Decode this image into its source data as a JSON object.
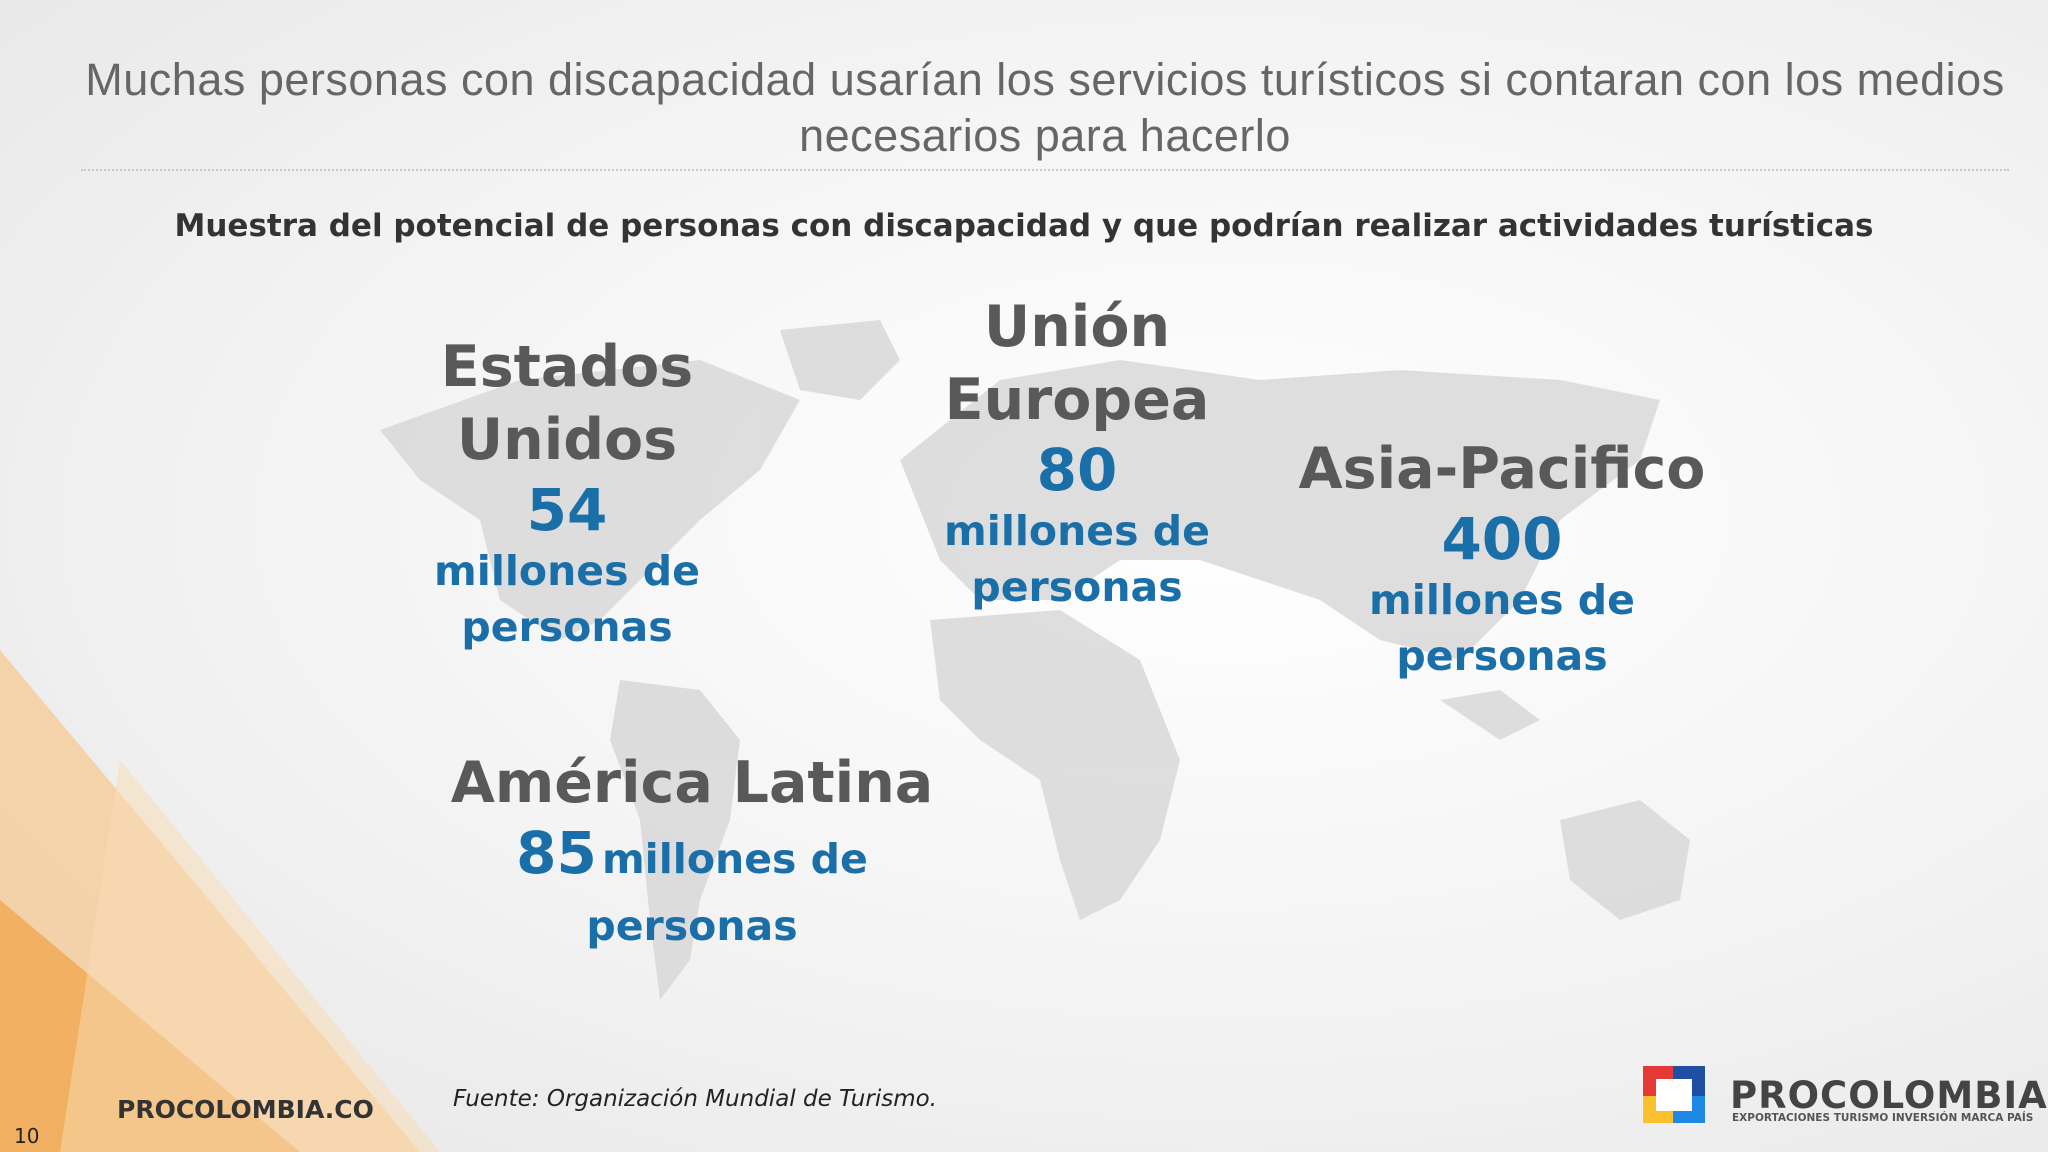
{
  "header": {
    "title": "Muchas personas con discapacidad usarían los servicios turísticos si contaran con los medios necesarios para hacerlo"
  },
  "subtitle": "Muestra del potencial de personas con discapacidad y que podrían realizar actividades turísticas",
  "regions": [
    {
      "name": "Estados Unidos",
      "value": 54,
      "unit": "millones de personas"
    },
    {
      "name": "Unión Europea",
      "value": 80,
      "unit": "millones de personas"
    },
    {
      "name": "Asia-Pacifico",
      "value": 400,
      "unit": "millones de personas"
    },
    {
      "name": "América Latina",
      "value": 85,
      "unit": "millones de personas"
    }
  ],
  "source": "Fuente: Organización Mundial de Turismo.",
  "footer": {
    "website": "PROCOLOMBIA.CO",
    "page_number": 10
  },
  "logo": {
    "name": "PROCOLOMBIA",
    "tagline": "EXPORTACIONES TURISMO INVERSIÓN MARCA PAÍS"
  }
}
